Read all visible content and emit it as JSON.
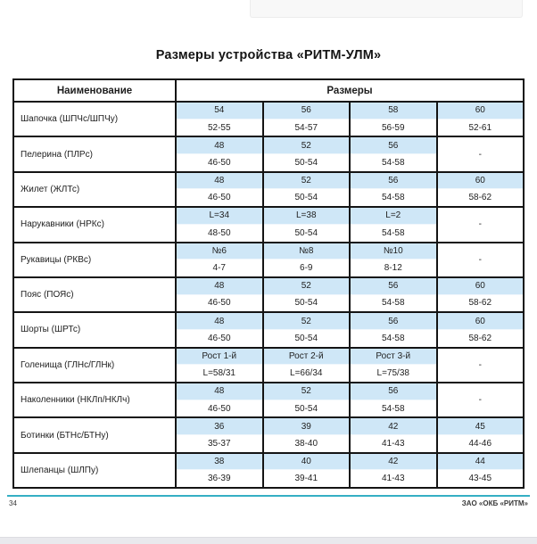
{
  "page": {
    "title": "Размеры устройства «РИТМ-УЛМ»",
    "footer": {
      "page_number": "34",
      "company": "ЗАО «ОКБ «РИТМ»"
    }
  },
  "colors": {
    "size_cell_blue": "#cfe7f7",
    "footer_line_teal": "#35afc4",
    "table_border": "#141414"
  },
  "table": {
    "header": {
      "name": "Наименование",
      "sizes": "Размеры"
    },
    "rows": [
      {
        "name": "Шапочка (ШПЧс/ШПЧу)",
        "top": [
          "54",
          "56",
          "58",
          "60"
        ],
        "bottom": [
          "52-55",
          "54-57",
          "56-59",
          "52-61"
        ]
      },
      {
        "name": "Пелерина (ПЛРс)",
        "top": [
          "48",
          "52",
          "56"
        ],
        "bottom": [
          "46-50",
          "50-54",
          "54-58"
        ],
        "dash": "-"
      },
      {
        "name": "Жилет (ЖЛТс)",
        "top": [
          "48",
          "52",
          "56",
          "60"
        ],
        "bottom": [
          "46-50",
          "50-54",
          "54-58",
          "58-62"
        ]
      },
      {
        "name": "Нарукавники (НРКс)",
        "top": [
          "L=34",
          "L=38",
          "L=2"
        ],
        "bottom": [
          "48-50",
          "50-54",
          "54-58"
        ],
        "dash": "-"
      },
      {
        "name": "Рукавицы (РКВс)",
        "top": [
          "№6",
          "№8",
          "№10"
        ],
        "bottom": [
          "4-7",
          "6-9",
          "8-12"
        ],
        "dash": "-"
      },
      {
        "name": "Пояс (ПОЯс)",
        "top": [
          "48",
          "52",
          "56",
          "60"
        ],
        "bottom": [
          "46-50",
          "50-54",
          "54-58",
          "58-62"
        ]
      },
      {
        "name": "Шорты (ШРТс)",
        "top": [
          "48",
          "52",
          "56",
          "60"
        ],
        "bottom": [
          "46-50",
          "50-54",
          "54-58",
          "58-62"
        ]
      },
      {
        "name": "Голенища (ГЛНс/ГЛНк)",
        "top": [
          "Рост 1-й",
          "Рост 2-й",
          "Рост 3-й"
        ],
        "bottom": [
          "L=58/31",
          "L=66/34",
          "L=75/38"
        ],
        "dash": "-"
      },
      {
        "name": "Наколенники (НКЛп/НКЛч)",
        "top": [
          "48",
          "52",
          "56"
        ],
        "bottom": [
          "46-50",
          "50-54",
          "54-58"
        ],
        "dash": "-"
      },
      {
        "name": "Ботинки (БТНс/БТНу)",
        "top": [
          "36",
          "39",
          "42",
          "45"
        ],
        "bottom": [
          "35-37",
          "38-40",
          "41-43",
          "44-46"
        ]
      },
      {
        "name": "Шлепанцы (ШЛПу)",
        "top": [
          "38",
          "40",
          "42",
          "44"
        ],
        "bottom": [
          "36-39",
          "39-41",
          "41-43",
          "43-45"
        ]
      }
    ]
  }
}
